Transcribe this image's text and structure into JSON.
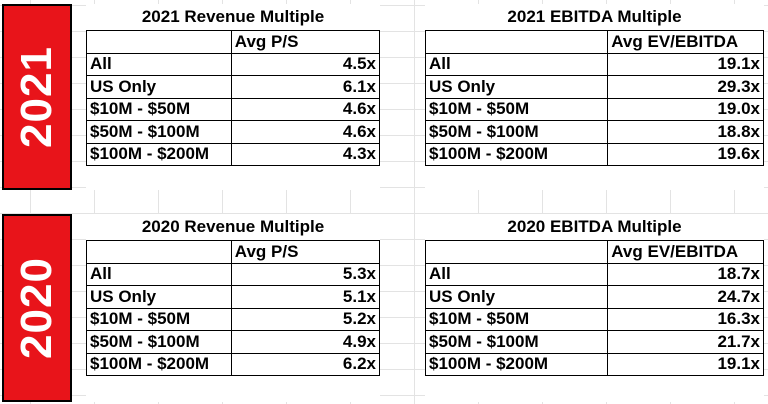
{
  "sections": [
    {
      "year": "2021",
      "revenue": {
        "title": "2021 Revenue Multiple",
        "column_header": "Avg P/S",
        "rows": [
          {
            "label": "All",
            "value": "4.5x"
          },
          {
            "label": "US Only",
            "value": "6.1x"
          },
          {
            "label": "$10M - $50M",
            "value": "4.6x"
          },
          {
            "label": "$50M - $100M",
            "value": "4.6x"
          },
          {
            "label": "$100M - $200M",
            "value": "4.3x"
          }
        ]
      },
      "ebitda": {
        "title": "2021 EBITDA Multiple",
        "column_header": "Avg EV/EBITDA",
        "rows": [
          {
            "label": "All",
            "value": "19.1x"
          },
          {
            "label": "US Only",
            "value": "29.3x"
          },
          {
            "label": "$10M - $50M",
            "value": "19.0x"
          },
          {
            "label": "$50M - $100M",
            "value": "18.8x"
          },
          {
            "label": "$100M - $200M",
            "value": "19.6x"
          }
        ]
      }
    },
    {
      "year": "2020",
      "revenue": {
        "title": "2020 Revenue Multiple",
        "column_header": "Avg P/S",
        "rows": [
          {
            "label": "All",
            "value": "5.3x"
          },
          {
            "label": "US Only",
            "value": "5.1x"
          },
          {
            "label": "$10M - $50M",
            "value": "5.2x"
          },
          {
            "label": "$50M - $100M",
            "value": "4.9x"
          },
          {
            "label": "$100M - $200M",
            "value": "6.2x"
          }
        ]
      },
      "ebitda": {
        "title": "2020 EBITDA Multiple",
        "column_header": "Avg EV/EBITDA",
        "rows": [
          {
            "label": "All",
            "value": "18.7x"
          },
          {
            "label": "US Only",
            "value": "24.7x"
          },
          {
            "label": "$10M - $50M",
            "value": "16.3x"
          },
          {
            "label": "$50M - $100M",
            "value": "21.7x"
          },
          {
            "label": "$100M - $200M",
            "value": "19.1x"
          }
        ]
      }
    }
  ],
  "colors": {
    "year_box": "#e8141a",
    "year_text": "#ffffff",
    "gridlines": "#e3e3e3"
  }
}
